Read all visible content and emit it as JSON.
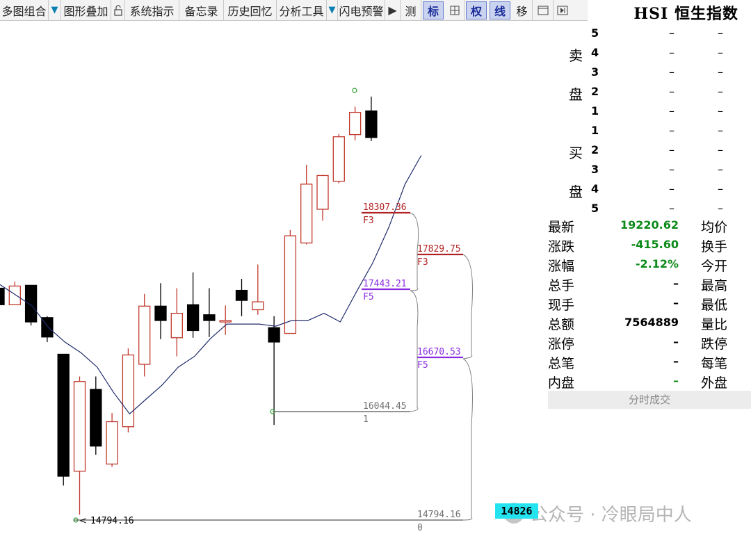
{
  "toolbar": {
    "items": [
      "多图组合",
      "图形叠加",
      "系统指示",
      "备忘录",
      "历史回忆",
      "分析工具",
      "闪电预警",
      "测",
      "标",
      "权",
      "线",
      "移"
    ],
    "tri_glyph": "▼",
    "play_glyph": "▶"
  },
  "panel": {
    "index_title": "HSI 恒生指数",
    "sell_label_1": "卖",
    "sell_label_2": "盘",
    "buy_label_1": "买",
    "buy_label_2": "盘",
    "dash": "–",
    "sell_levels": [
      "5",
      "4",
      "3",
      "2",
      "1"
    ],
    "buy_levels": [
      "1",
      "2",
      "3",
      "4",
      "5"
    ],
    "quotes": [
      {
        "label": "最新",
        "value": "19220.62",
        "label2": "均价",
        "green": true
      },
      {
        "label": "涨跌",
        "value": "-415.60",
        "label2": "换手",
        "green": true
      },
      {
        "label": "涨幅",
        "value": "-2.12%",
        "label2": "今开",
        "green": true
      },
      {
        "label": "总手",
        "value": "–",
        "label2": "最高",
        "green": false
      },
      {
        "label": "现手",
        "value": "–",
        "label2": "最低",
        "green": false
      },
      {
        "label": "总额",
        "value": "7564889",
        "label2": "量比",
        "green": false
      },
      {
        "label": "涨停",
        "value": "–",
        "label2": "跌停",
        "green": false
      },
      {
        "label": "总笔",
        "value": "–",
        "label2": "每笔",
        "green": false
      },
      {
        "label": "内盘",
        "value": "–",
        "label2": "外盘",
        "green": true
      }
    ],
    "trade_tab": "分时成交"
  },
  "chart_data": {
    "type": "candlestick",
    "colors": {
      "up": "#c0392b",
      "down": "#000000",
      "ma": "#1f2a6b",
      "fib_red": "#b22222",
      "fib_purple": "#8a2be2",
      "fib_gray": "#707070"
    },
    "candles_note": "open/close/high/low in index points",
    "candles": [
      {
        "o": 17950,
        "c": 17720,
        "h": 18010,
        "l": 17660
      },
      {
        "o": 17720,
        "c": 17980,
        "h": 18040,
        "l": 17720
      },
      {
        "o": 17990,
        "c": 17480,
        "h": 17990,
        "l": 17430
      },
      {
        "o": 17540,
        "c": 17270,
        "h": 17560,
        "l": 17200
      },
      {
        "o": 17030,
        "c": 15330,
        "h": 17030,
        "l": 15200
      },
      {
        "o": 15400,
        "c": 16650,
        "h": 16720,
        "l": 14794.16
      },
      {
        "o": 16540,
        "c": 15750,
        "h": 16720,
        "l": 15630
      },
      {
        "o": 15500,
        "c": 16090,
        "h": 16210,
        "l": 15460
      },
      {
        "o": 16020,
        "c": 17020,
        "h": 17110,
        "l": 15940
      },
      {
        "o": 16890,
        "c": 17700,
        "h": 17870,
        "l": 16720
      },
      {
        "o": 17700,
        "c": 17500,
        "h": 18020,
        "l": 17240
      },
      {
        "o": 17260,
        "c": 17600,
        "h": 17950,
        "l": 17000
      },
      {
        "o": 17720,
        "c": 17360,
        "h": 18170,
        "l": 17260
      },
      {
        "o": 17580,
        "c": 17500,
        "h": 17950,
        "l": 17270
      },
      {
        "o": 17480,
        "c": 17500,
        "h": 17710,
        "l": 17300
      },
      {
        "o": 17920,
        "c": 17780,
        "h": 18080,
        "l": 17560
      },
      {
        "o": 17650,
        "c": 17760,
        "h": 18280,
        "l": 17580
      },
      {
        "o": 17400,
        "c": 17200,
        "h": 17560,
        "l": 16044.45
      },
      {
        "o": 17320,
        "c": 18680,
        "h": 18760,
        "l": 17320
      },
      {
        "o": 18580,
        "c": 19400,
        "h": 19670,
        "l": 18560
      },
      {
        "o": 19050,
        "c": 19520,
        "h": 19530,
        "l": 18890
      },
      {
        "o": 19440,
        "c": 20060,
        "h": 20100,
        "l": 19410
      },
      {
        "o": 20090,
        "c": 20400,
        "h": 20480,
        "l": 20010
      },
      {
        "o": 20420,
        "c": 20050,
        "h": 20620,
        "l": 20000
      }
    ],
    "ma": [
      18000,
      17850,
      17700,
      17400,
      17200,
      17050,
      16850,
      16500,
      16200,
      16400,
      16600,
      16850,
      17000,
      17250,
      17450,
      17450,
      17450,
      17420,
      17500,
      17500,
      17600,
      17480,
      17900,
      18300,
      18800,
      19400,
      19800
    ],
    "fib_levels": [
      {
        "value": "18307.36",
        "tag": "F3",
        "kind": "fib_red"
      },
      {
        "value": "17443.21",
        "tag": "F5",
        "kind": "fib_purple"
      },
      {
        "value": "16044.45",
        "tag": "1",
        "kind": "fib_gray"
      },
      {
        "value": "17829.75",
        "tag": "F3",
        "kind": "fib_red"
      },
      {
        "value": "16670.53",
        "tag": "F5",
        "kind": "fib_purple"
      },
      {
        "value": "14794.16",
        "tag": "0",
        "kind": "fib_gray"
      }
    ],
    "low_label": "14794.16",
    "ylim": [
      14700,
      20900
    ]
  },
  "bottom": {
    "price_badge": "14826",
    "watermark": "公众号 · 冷眼局中人"
  }
}
